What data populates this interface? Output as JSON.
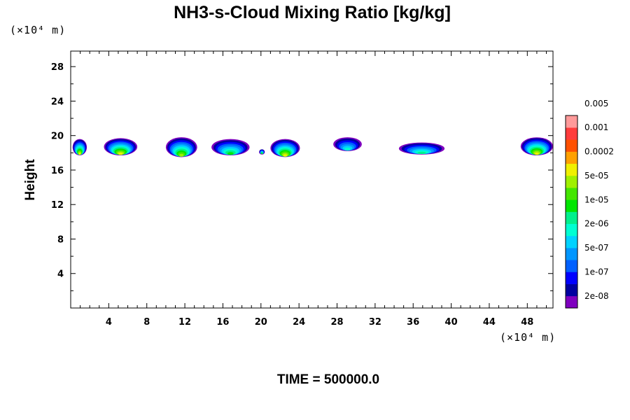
{
  "chart_data": {
    "type": "heatmap",
    "title": "NH3-s-Cloud Mixing Ratio [kg/kg]",
    "ylabel": "Height",
    "x_unit": "(×10⁴ m)",
    "y_unit": "(×10⁴ m)",
    "x_ticks": [
      4,
      8,
      12,
      16,
      20,
      24,
      28,
      32,
      36,
      40,
      44,
      48
    ],
    "y_ticks": [
      4,
      8,
      12,
      16,
      20,
      24,
      28
    ],
    "xlim": [
      0,
      50.7
    ],
    "ylim": [
      0,
      29.8
    ],
    "time_label": "TIME = 500000.0",
    "colorbar": {
      "colors": [
        "#7f00bf",
        "#0000a0",
        "#0000ff",
        "#0060ff",
        "#0096ff",
        "#00d2ff",
        "#00ffd2",
        "#00f08c",
        "#00e600",
        "#44e600",
        "#a0f000",
        "#f0f000",
        "#ffa000",
        "#ff5000",
        "#ff3c3c",
        "#ff9a9a"
      ],
      "labels": [
        "2e-08",
        "1e-07",
        "5e-07",
        "2e-06",
        "1e-05",
        "5e-05",
        "0.0002",
        "0.001",
        "0.005"
      ]
    },
    "clouds": [
      {
        "x0": 0.2,
        "x1": 1.7,
        "y0": 17.7,
        "y1": 19.6,
        "peak": 11
      },
      {
        "x0": 3.5,
        "x1": 7.0,
        "y0": 17.7,
        "y1": 19.7,
        "peak": 11
      },
      {
        "x0": 10.0,
        "x1": 13.3,
        "y0": 17.5,
        "y1": 19.8,
        "peak": 10
      },
      {
        "x0": 14.8,
        "x1": 18.8,
        "y0": 17.7,
        "y1": 19.6,
        "peak": 8
      },
      {
        "x0": 19.8,
        "x1": 20.4,
        "y0": 17.8,
        "y1": 18.4,
        "peak": 8
      },
      {
        "x0": 21.0,
        "x1": 24.1,
        "y0": 17.5,
        "y1": 19.6,
        "peak": 11
      },
      {
        "x0": 27.6,
        "x1": 30.6,
        "y0": 18.2,
        "y1": 19.8,
        "peak": 6
      },
      {
        "x0": 34.5,
        "x1": 39.3,
        "y0": 17.8,
        "y1": 19.2,
        "peak": 7
      },
      {
        "x0": 47.3,
        "x1": 50.7,
        "y0": 17.7,
        "y1": 19.8,
        "peak": 11
      }
    ]
  }
}
